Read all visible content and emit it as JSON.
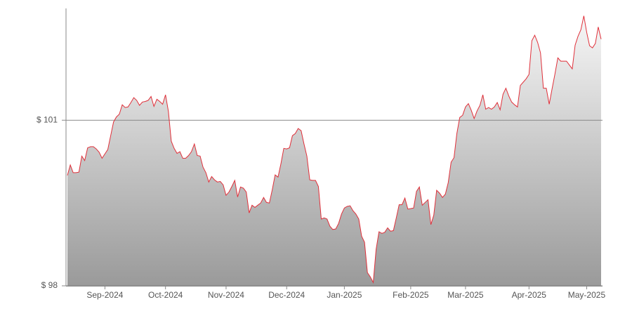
{
  "chart_data": {
    "type": "area",
    "categories": [
      null,
      null,
      null,
      null,
      null,
      null,
      null,
      null,
      null,
      null,
      null,
      null,
      null,
      "Sep-2024",
      null,
      null,
      null,
      null,
      null,
      null,
      null,
      null,
      null,
      null,
      null,
      null,
      null,
      null,
      null,
      null,
      null,
      null,
      null,
      null,
      "Oct-2024",
      null,
      null,
      null,
      null,
      null,
      null,
      null,
      null,
      null,
      null,
      null,
      null,
      null,
      null,
      null,
      null,
      null,
      null,
      null,
      null,
      "Nov-2024",
      null,
      null,
      null,
      null,
      null,
      null,
      null,
      null,
      null,
      null,
      null,
      null,
      null,
      null,
      null,
      null,
      null,
      null,
      null,
      null,
      "Dec-2024",
      null,
      null,
      null,
      null,
      null,
      null,
      null,
      null,
      null,
      null,
      null,
      null,
      null,
      null,
      null,
      null,
      null,
      null,
      null,
      "Jan-2025",
      null,
      null,
      null,
      null,
      null,
      null,
      null,
      null,
      null,
      null,
      null,
      null,
      null,
      null,
      null,
      null,
      null,
      null,
      null,
      null,
      null,
      null,
      "Feb-2025",
      null,
      null,
      null,
      null,
      null,
      null,
      null,
      null,
      null,
      null,
      null,
      null,
      null,
      null,
      null,
      null,
      null,
      null,
      "Mar-2025",
      null,
      null,
      null,
      null,
      null,
      null,
      null,
      null,
      null,
      null,
      null,
      null,
      null,
      null,
      null,
      null,
      null,
      null,
      null,
      null,
      null,
      "Apr-2025",
      null,
      null,
      null,
      null,
      null,
      null,
      null,
      null,
      null,
      null,
      null,
      null,
      null,
      null,
      null,
      null,
      null,
      null,
      null,
      "May-2025",
      null,
      null,
      null,
      null,
      null
    ],
    "values": [
      100.0,
      100.19,
      100.05,
      100.05,
      100.06,
      100.35,
      100.27,
      100.5,
      100.52,
      100.52,
      100.48,
      100.42,
      100.31,
      100.39,
      100.47,
      100.72,
      100.97,
      101.06,
      101.11,
      101.28,
      101.23,
      101.24,
      101.32,
      101.41,
      101.36,
      101.27,
      101.33,
      101.34,
      101.36,
      101.43,
      101.25,
      101.38,
      101.34,
      101.29,
      101.46,
      101.16,
      100.62,
      100.49,
      100.4,
      100.43,
      100.31,
      100.31,
      100.36,
      100.43,
      100.57,
      100.36,
      100.35,
      100.15,
      100.05,
      99.88,
      99.98,
      99.92,
      99.88,
      99.89,
      99.83,
      99.64,
      99.7,
      99.8,
      99.91,
      99.61,
      99.79,
      99.77,
      99.7,
      99.32,
      99.46,
      99.42,
      99.46,
      99.5,
      99.6,
      99.51,
      99.5,
      99.74,
      100.01,
      99.97,
      100.21,
      100.49,
      100.48,
      100.5,
      100.72,
      100.76,
      100.85,
      100.81,
      100.57,
      100.35,
      99.92,
      99.91,
      99.91,
      99.8,
      99.21,
      99.23,
      99.21,
      99.08,
      99.02,
      99.03,
      99.13,
      99.3,
      99.41,
      99.44,
      99.45,
      99.36,
      99.3,
      99.21,
      98.9,
      98.79,
      98.24,
      98.16,
      98.06,
      98.66,
      98.98,
      98.95,
      98.97,
      99.05,
      98.99,
      99.0,
      99.23,
      99.47,
      99.47,
      99.59,
      99.39,
      99.4,
      99.41,
      99.71,
      99.79,
      99.46,
      99.51,
      99.56,
      99.11,
      99.28,
      99.73,
      99.68,
      99.6,
      99.66,
      99.87,
      100.24,
      100.32,
      100.76,
      101.05,
      101.09,
      101.24,
      101.3,
      101.18,
      101.03,
      101.17,
      101.27,
      101.46,
      101.2,
      101.23,
      101.2,
      101.24,
      101.32,
      101.19,
      101.47,
      101.58,
      101.44,
      101.33,
      101.28,
      101.24,
      101.63,
      101.69,
      101.75,
      101.83,
      102.44,
      102.54,
      102.41,
      102.22,
      101.58,
      101.58,
      101.29,
      101.57,
      101.84,
      102.13,
      102.07,
      102.07,
      102.07,
      102.0,
      101.93,
      102.36,
      102.52,
      102.64,
      102.89,
      102.59,
      102.35,
      102.31,
      102.39,
      102.69,
      102.47
    ],
    "color": "#e0303a",
    "ylim": [
      98,
      103
    ],
    "yticks": [
      {
        "value": 98,
        "label": "$ 98"
      },
      {
        "value": 101,
        "label": "$ 101"
      }
    ],
    "grid": true
  }
}
